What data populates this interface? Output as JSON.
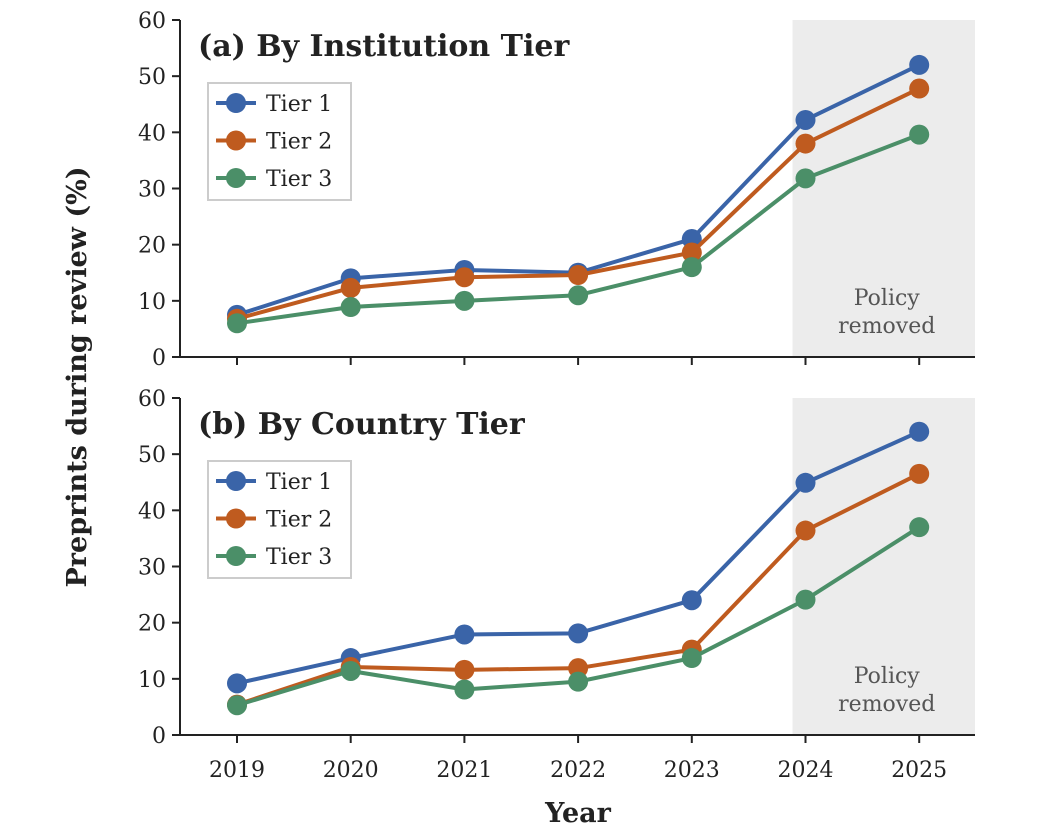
{
  "chart_data": [
    {
      "type": "line",
      "title": "(a) By Institution Tier",
      "x": [
        2019,
        2020,
        2021,
        2022,
        2023,
        2024,
        2025
      ],
      "series": [
        {
          "name": "Tier 1",
          "values": [
            7.5,
            14.0,
            15.5,
            15.0,
            21.0,
            42.2,
            52.0
          ]
        },
        {
          "name": "Tier 2",
          "values": [
            6.8,
            12.3,
            14.2,
            14.6,
            18.6,
            38.0,
            47.8
          ]
        },
        {
          "name": "Tier 3",
          "values": [
            6.0,
            8.9,
            10.0,
            11.0,
            16.0,
            31.8,
            39.6
          ]
        }
      ],
      "ylim": [
        0,
        60
      ],
      "yticks": [
        0,
        10,
        20,
        30,
        40,
        50,
        60
      ],
      "shaded_region": {
        "from": 2024,
        "label_line1": "Policy",
        "label_line2": "removed"
      },
      "legend_placement": "upper-left"
    },
    {
      "type": "line",
      "title": "(b) By Country Tier",
      "x": [
        2019,
        2020,
        2021,
        2022,
        2023,
        2024,
        2025
      ],
      "series": [
        {
          "name": "Tier 1",
          "values": [
            9.2,
            13.7,
            17.9,
            18.1,
            24.0,
            44.9,
            54.0
          ]
        },
        {
          "name": "Tier 2",
          "values": [
            5.4,
            12.1,
            11.6,
            11.9,
            15.2,
            36.4,
            46.5
          ]
        },
        {
          "name": "Tier 3",
          "values": [
            5.3,
            11.4,
            8.1,
            9.5,
            13.7,
            24.1,
            37.0
          ]
        }
      ],
      "ylim": [
        0,
        60
      ],
      "yticks": [
        0,
        10,
        20,
        30,
        40,
        50,
        60
      ],
      "shaded_region": {
        "from": 2024,
        "label_line1": "Policy",
        "label_line2": "removed"
      },
      "legend_placement": "upper-left"
    }
  ],
  "xlabel": "Year",
  "ylabel": "Preprints during review (%)",
  "colors": {
    "Tier 1": "#3a64a8",
    "Tier 2": "#bf5b1f",
    "Tier 3": "#4b8f68",
    "shade": "#ececec"
  },
  "grid": false
}
